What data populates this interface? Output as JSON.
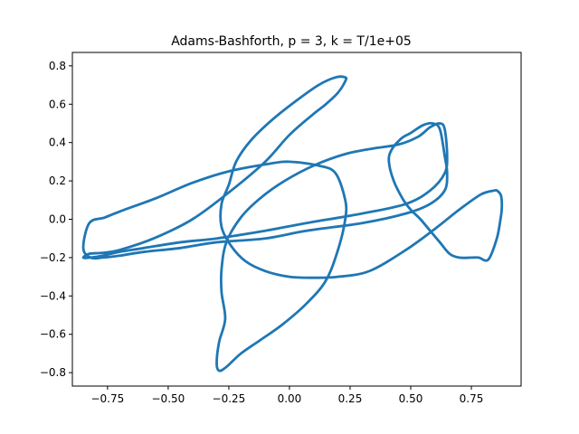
{
  "chart_data": {
    "type": "line",
    "title": "Adams-Bashforth, p = 3, k = T/1e+05",
    "xlabel": "",
    "ylabel": "",
    "xlim": [
      -0.895,
      0.955
    ],
    "ylim": [
      -0.87,
      0.87
    ],
    "xticks": [
      -0.75,
      -0.5,
      -0.25,
      0.0,
      0.25,
      0.5,
      0.75
    ],
    "xtick_labels": [
      "−0.75",
      "−0.50",
      "−0.25",
      "0.00",
      "0.25",
      "0.50",
      "0.75"
    ],
    "yticks": [
      -0.8,
      -0.6,
      -0.4,
      -0.2,
      0.0,
      0.2,
      0.4,
      0.6,
      0.8
    ],
    "ytick_labels": [
      "−0.8",
      "−0.6",
      "−0.4",
      "−0.2",
      "0.0",
      "0.2",
      "0.4",
      "0.6",
      "0.8"
    ],
    "grid": false,
    "line_color": "#1f77b4",
    "series": [
      {
        "x": [
          0.845,
          0.79,
          0.7,
          0.6,
          0.48,
          0.33,
          0.2,
          0.1,
          0.0,
          -0.1,
          -0.18,
          -0.24,
          -0.28,
          -0.28,
          -0.25,
          -0.22,
          -0.16,
          -0.07,
          0.03,
          0.12,
          0.19,
          0.23,
          0.23,
          0.2,
          0.15,
          0.1,
          0.0,
          -0.1,
          -0.24,
          -0.4,
          -0.56,
          -0.7,
          -0.77,
          -0.825,
          -0.85,
          -0.82,
          -0.77,
          -0.7,
          -0.6,
          -0.45,
          -0.3,
          -0.1,
          0.07,
          0.3,
          0.48,
          0.58,
          0.64,
          0.65,
          0.64,
          0.62,
          0.58,
          0.53,
          0.45,
          0.35,
          0.23,
          0.1,
          -0.02,
          -0.12,
          -0.2,
          -0.26,
          -0.28,
          -0.28,
          -0.265,
          -0.29,
          -0.3,
          -0.29,
          -0.26,
          -0.2,
          -0.12,
          -0.03,
          0.07,
          0.15,
          0.2,
          0.23,
          0.23,
          0.19,
          0.12,
          0.0,
          -0.08,
          -0.25,
          -0.4,
          -0.55,
          -0.68,
          -0.76,
          -0.825,
          -0.85,
          -0.82,
          -0.77,
          -0.7,
          -0.6,
          -0.45,
          -0.3,
          -0.1,
          0.07,
          0.3,
          0.48,
          0.58,
          0.64,
          0.65,
          0.64,
          0.62,
          0.59,
          0.55,
          0.5,
          0.46,
          0.42,
          0.41,
          0.43,
          0.47,
          0.5,
          0.54,
          0.58,
          0.62,
          0.66,
          0.7,
          0.75,
          0.78,
          0.82,
          0.855,
          0.87,
          0.875,
          0.875,
          0.87,
          0.855,
          0.845
        ],
        "y": [
          0.15,
          0.13,
          0.05,
          -0.05,
          -0.16,
          -0.27,
          -0.3,
          -0.305,
          -0.3,
          -0.27,
          -0.22,
          -0.14,
          -0.04,
          0.08,
          0.18,
          0.3,
          0.41,
          0.52,
          0.62,
          0.7,
          0.74,
          0.74,
          0.72,
          0.66,
          0.6,
          0.55,
          0.44,
          0.3,
          0.15,
          0.0,
          -0.1,
          -0.16,
          -0.175,
          -0.18,
          -0.2,
          -0.2,
          -0.19,
          -0.17,
          -0.15,
          -0.12,
          -0.1,
          -0.06,
          -0.02,
          0.03,
          0.08,
          0.15,
          0.24,
          0.33,
          0.47,
          0.5,
          0.48,
          0.43,
          0.39,
          0.37,
          0.34,
          0.28,
          0.2,
          0.11,
          0.01,
          -0.12,
          -0.26,
          -0.38,
          -0.52,
          -0.64,
          -0.75,
          -0.79,
          -0.77,
          -0.7,
          -0.63,
          -0.55,
          -0.44,
          -0.32,
          -0.16,
          0.0,
          0.1,
          0.24,
          0.28,
          0.3,
          0.29,
          0.25,
          0.19,
          0.11,
          0.05,
          0.01,
          -0.02,
          -0.15,
          -0.2,
          -0.2,
          -0.19,
          -0.17,
          -0.15,
          -0.12,
          -0.1,
          -0.06,
          -0.02,
          0.03,
          0.08,
          0.15,
          0.24,
          0.33,
          0.47,
          0.5,
          0.49,
          0.45,
          0.42,
          0.36,
          0.3,
          0.2,
          0.1,
          0.05,
          0.0,
          -0.06,
          -0.12,
          -0.18,
          -0.2,
          -0.2,
          -0.2,
          -0.21,
          -0.1,
          0.0,
          0.05,
          0.1,
          0.13,
          0.15,
          0.15
        ]
      }
    ]
  }
}
